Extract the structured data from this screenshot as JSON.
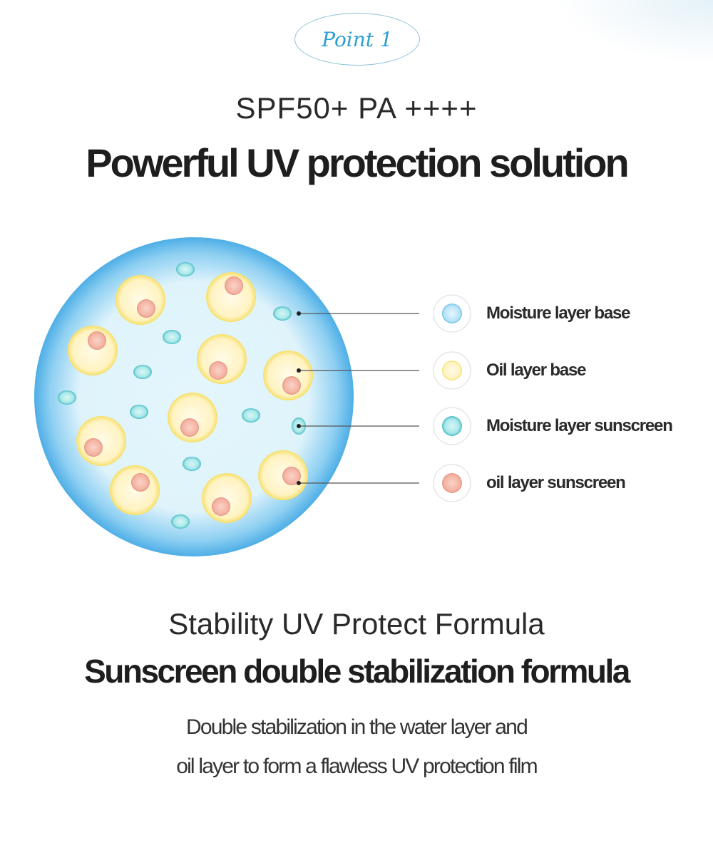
{
  "badge": {
    "label": "Point 1"
  },
  "header": {
    "spec": "SPF50+ PA ++++",
    "title": "Powerful UV protection solution"
  },
  "legend": {
    "items": [
      {
        "label": "Moisture layer base",
        "icon": "light-blue-bubble-icon"
      },
      {
        "label": "Oil layer base",
        "icon": "yellow-bubble-icon"
      },
      {
        "label": "Moisture layer sunscreen",
        "icon": "teal-bubble-icon"
      },
      {
        "label": "oil layer sunscreen",
        "icon": "pink-bubble-icon"
      }
    ]
  },
  "colors": {
    "accent": "#2b9fd2",
    "water": "#5bb8ec",
    "oil": "#f7e27a",
    "sunscreen_water": "#6fd3d8",
    "sunscreen_oil": "#f2a99a"
  },
  "section2": {
    "subtitle": "Stability UV Protect Formula",
    "title": "Sunscreen double stabilization formula",
    "lines": [
      "Double stabilization in the water layer and",
      "oil layer to form a flawless UV protection film"
    ]
  }
}
